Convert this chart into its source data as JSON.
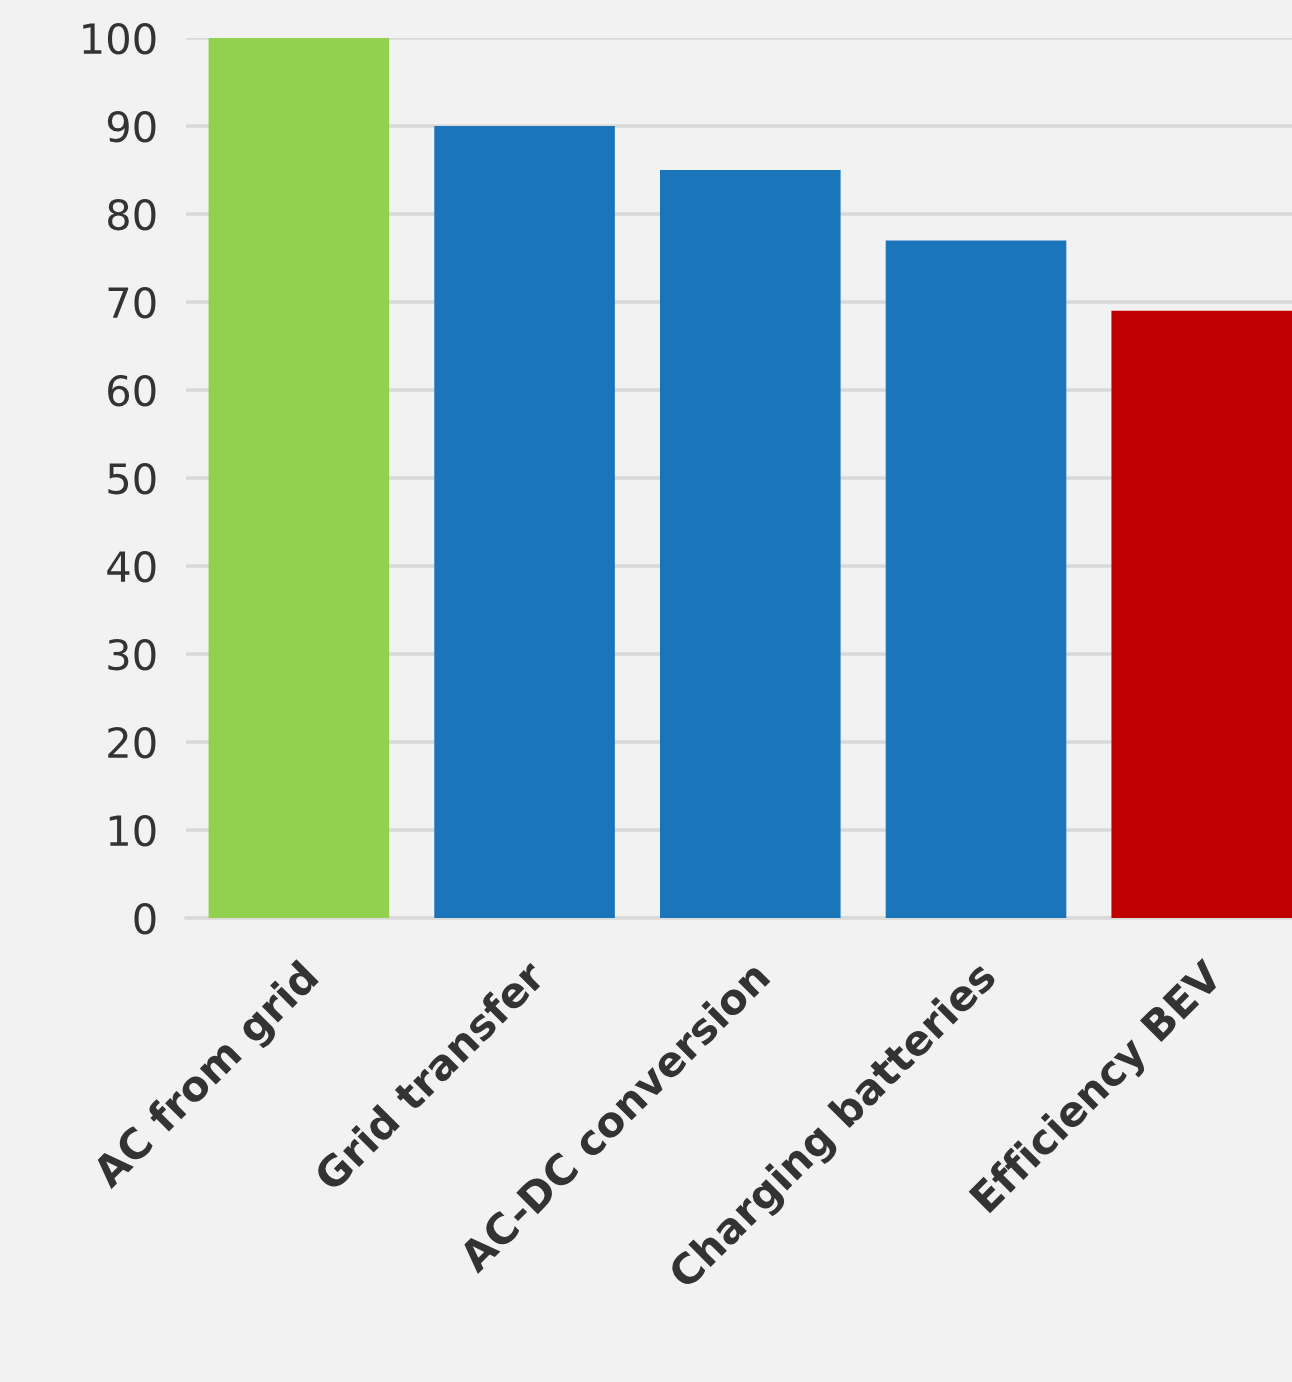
{
  "chart_data": {
    "type": "bar",
    "categories": [
      "AC from grid",
      "Grid transfer",
      "AC-DC conversion",
      "Charging batteries",
      "Efficiency BEV"
    ],
    "values": [
      100,
      90,
      85,
      77,
      69
    ],
    "colors": [
      "#92d050",
      "#1b75bb",
      "#1b75bb",
      "#1b75bb",
      "#c00000"
    ],
    "ylim": [
      0,
      100
    ],
    "yticks": [
      0,
      10,
      20,
      30,
      40,
      50,
      60,
      70,
      80,
      90,
      100
    ],
    "grid": "y"
  }
}
